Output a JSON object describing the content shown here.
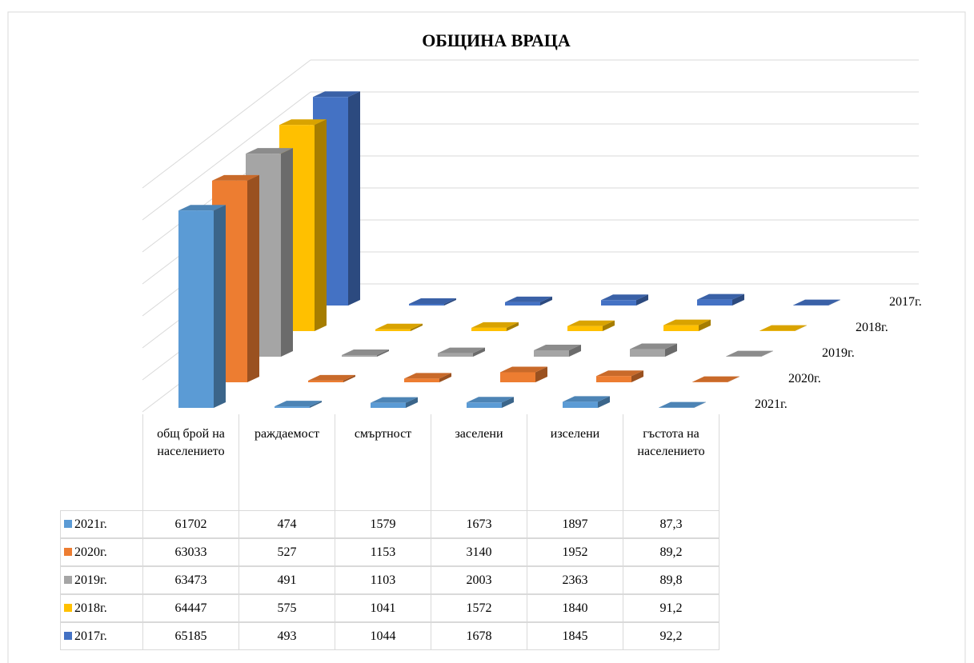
{
  "chart_data": {
    "type": "bar3d",
    "title": "ОБЩИНА ВРАЦА",
    "categories": [
      "общ брой на населението",
      "раждаемост",
      "смъртност",
      "заселени",
      "изселени",
      "гъстота на населението"
    ],
    "series": [
      {
        "name": "2021г.",
        "color": "#5b9bd5",
        "values": [
          61702,
          474,
          1579,
          1673,
          1897,
          87.3
        ],
        "value_labels": [
          "61702",
          "474",
          "1579",
          "1673",
          "1897",
          "87,3"
        ]
      },
      {
        "name": "2020г.",
        "color": "#ed7d31",
        "values": [
          63033,
          527,
          1153,
          3140,
          1952,
          89.2
        ],
        "value_labels": [
          "63033",
          "527",
          "1153",
          "3140",
          "1952",
          "89,2"
        ]
      },
      {
        "name": "2019г.",
        "color": "#a5a5a5",
        "values": [
          63473,
          491,
          1103,
          2003,
          2363,
          89.8
        ],
        "value_labels": [
          "63473",
          "491",
          "1103",
          "2003",
          "2363",
          "89,8"
        ]
      },
      {
        "name": "2018г.",
        "color": "#ffc000",
        "values": [
          64447,
          575,
          1041,
          1572,
          1840,
          91.2
        ],
        "value_labels": [
          "64447",
          "575",
          "1041",
          "1572",
          "1840",
          "91,2"
        ]
      },
      {
        "name": "2017г.",
        "color": "#4472c4",
        "values": [
          65185,
          493,
          1044,
          1678,
          1845,
          92.2
        ],
        "value_labels": [
          "65185",
          "493",
          "1044",
          "1678",
          "1845",
          "92,2"
        ]
      }
    ],
    "ylim": [
      0,
      70000
    ],
    "yticks": [
      0,
      10000,
      20000,
      30000,
      40000,
      50000,
      60000,
      70000
    ],
    "grid": true
  }
}
